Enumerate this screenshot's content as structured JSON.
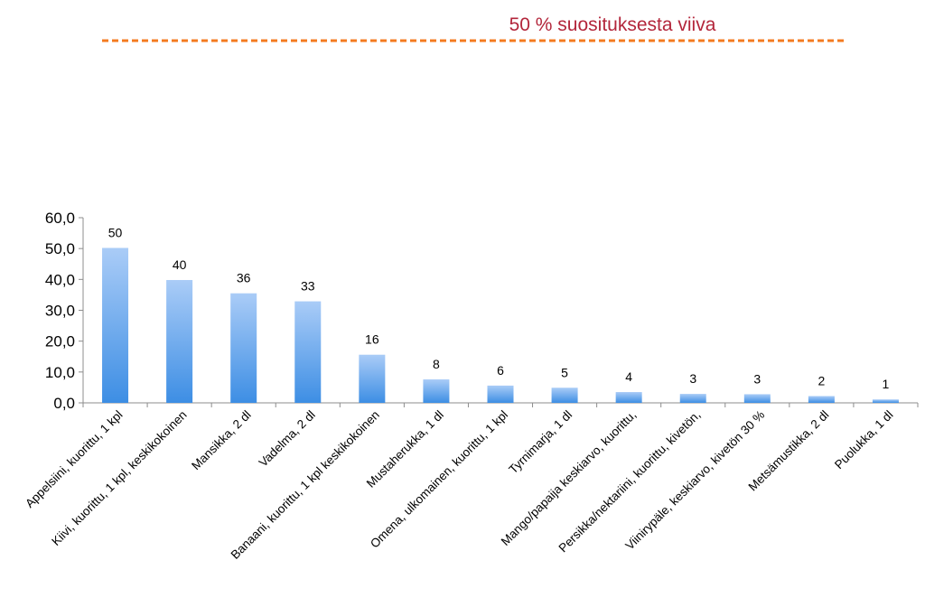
{
  "colors": {
    "bar_top": "#aaccf7",
    "bar_bottom": "#3d8ee4",
    "reference_line": "#f47b20",
    "reference_label": "#b3263b"
  },
  "chart_data": {
    "type": "bar",
    "title": "",
    "xlabel": "",
    "ylabel": "",
    "ylim": [
      0,
      60
    ],
    "y_ticks": [
      "0,0",
      "10,0",
      "20,0",
      "30,0",
      "40,0",
      "50,0",
      "60,0"
    ],
    "categories": [
      "Appelsiini, kuorittu, 1 kpl",
      "Kiivi, kuorittu, 1 kpl, keskikokoinen",
      "Mansikka, 2 dl",
      "Vadelma, 2 dl",
      "Banaani, kuorittu, 1 kpl keskikokoinen",
      "Mustaherukka, 1 dl",
      "Omena, ulkomainen, kuorittu, 1 kpl",
      "Tyrnimarja, 1 dl",
      "Mango/papaija keskiarvo, kuorittu,",
      "Persikka/nektariini, kuorittu, kivetön,",
      "Viinirypäle, keskiarvo, kivetön 30 %",
      "Metsämustikka, 2 dl",
      "Puolukka, 1 dl"
    ],
    "values": [
      50.2,
      39.8,
      35.5,
      32.9,
      15.6,
      7.6,
      5.6,
      4.9,
      3.5,
      2.9,
      2.8,
      2.2,
      1.1
    ],
    "data_labels": [
      "50",
      "40",
      "36",
      "33",
      "16",
      "8",
      "6",
      "5",
      "4",
      "3",
      "3",
      "2",
      "1"
    ],
    "grid": false,
    "legend": "none",
    "reference_line": {
      "label": "50 % suosituksesta viiva",
      "style": "dashed"
    }
  }
}
